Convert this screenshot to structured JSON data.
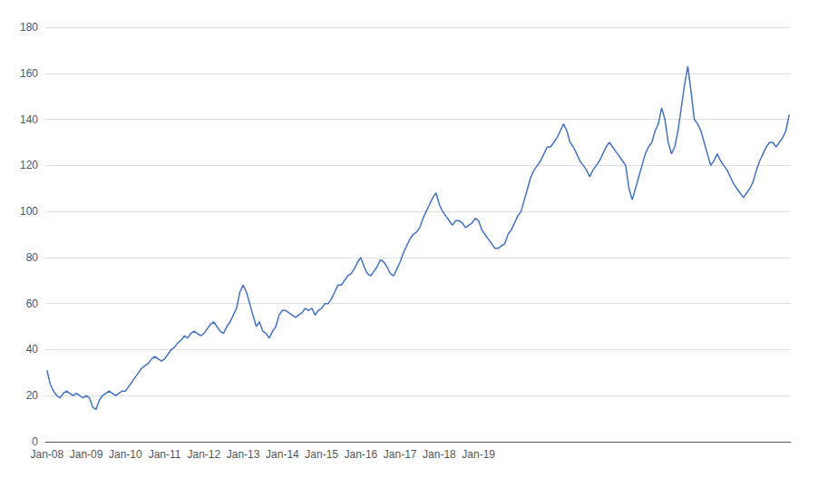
{
  "chart_data": {
    "type": "line",
    "color": "#4472C4",
    "grid": true,
    "ylim": [
      0,
      180
    ],
    "yticks": [
      0,
      20,
      40,
      60,
      80,
      100,
      120,
      140,
      160,
      180
    ],
    "categories": [
      "Jan-08",
      null,
      null,
      null,
      null,
      null,
      null,
      null,
      null,
      null,
      null,
      null,
      "Jan-09",
      null,
      null,
      null,
      null,
      null,
      null,
      null,
      null,
      null,
      null,
      null,
      "Jan-10",
      null,
      null,
      null,
      null,
      null,
      null,
      null,
      null,
      null,
      null,
      null,
      "Jan-11",
      null,
      null,
      null,
      null,
      null,
      null,
      null,
      null,
      null,
      null,
      null,
      "Jan-12",
      null,
      null,
      null,
      null,
      null,
      null,
      null,
      null,
      null,
      null,
      null,
      "Jan-13",
      null,
      null,
      null,
      null,
      null,
      null,
      null,
      null,
      null,
      null,
      null,
      "Jan-14",
      null,
      null,
      null,
      null,
      null,
      null,
      null,
      null,
      null,
      null,
      null,
      "Jan-15",
      null,
      null,
      null,
      null,
      null,
      null,
      null,
      null,
      null,
      null,
      null,
      "Jan-16",
      null,
      null,
      null,
      null,
      null,
      null,
      null,
      null,
      null,
      null,
      null,
      "Jan-17",
      null,
      null,
      null,
      null,
      null,
      null,
      null,
      null,
      null,
      null,
      null,
      "Jan-18",
      null,
      null,
      null,
      null,
      null,
      null,
      null,
      null,
      null,
      null,
      null,
      "Jan-19",
      null,
      null,
      null,
      null,
      null,
      null,
      null,
      null,
      null,
      null,
      null,
      null,
      null,
      null,
      null,
      null,
      null,
      null,
      null,
      null,
      null,
      null,
      null,
      null,
      null,
      null,
      null,
      null,
      null,
      null,
      null,
      null,
      null,
      null,
      null,
      null,
      null,
      null,
      null,
      null,
      null,
      null,
      null,
      null,
      null,
      null,
      null,
      null,
      null,
      null,
      null,
      null,
      null,
      null,
      null,
      null,
      null,
      null,
      null,
      null,
      null,
      null,
      null,
      null,
      null,
      null,
      null,
      null,
      null,
      null,
      null,
      null,
      null,
      null,
      null,
      null,
      null,
      null,
      null,
      null,
      null,
      null,
      null,
      null,
      null,
      null,
      null,
      null,
      null,
      null,
      null,
      null,
      null,
      null,
      null
    ],
    "values": [
      31,
      25,
      22,
      20,
      19,
      21,
      22,
      21,
      20,
      21,
      20,
      19,
      20,
      19,
      15,
      14,
      18,
      20,
      21,
      22,
      21,
      20,
      21,
      22,
      22,
      24,
      26,
      28,
      30,
      32,
      33,
      34,
      36,
      37,
      36,
      35,
      36,
      38,
      40,
      41,
      43,
      44,
      46,
      45,
      47,
      48,
      47,
      46,
      47,
      49,
      51,
      52,
      50,
      48,
      47,
      50,
      52,
      55,
      58,
      65,
      68,
      65,
      60,
      55,
      50,
      52,
      48,
      47,
      45,
      48,
      50,
      55,
      57,
      57,
      56,
      55,
      54,
      55,
      56,
      58,
      57,
      58,
      55,
      57,
      58,
      60,
      60,
      62,
      65,
      68,
      68,
      70,
      72,
      73,
      75,
      78,
      80,
      76,
      73,
      72,
      74,
      76,
      79,
      78,
      76,
      73,
      72,
      75,
      78,
      82,
      85,
      88,
      90,
      91,
      93,
      97,
      100,
      103,
      106,
      108,
      103,
      100,
      98,
      96,
      94,
      96,
      96,
      95,
      93,
      94,
      95,
      97,
      96,
      92,
      90,
      88,
      86,
      84,
      84,
      85,
      86,
      90,
      92,
      95,
      98,
      100,
      105,
      110,
      115,
      118,
      120,
      122,
      125,
      128,
      128,
      130,
      132,
      135,
      138,
      135,
      130,
      128,
      125,
      122,
      120,
      118,
      115,
      118,
      120,
      122,
      125,
      128,
      130,
      128,
      126,
      124,
      122,
      120,
      110,
      105,
      110,
      115,
      120,
      125,
      128,
      130,
      135,
      138,
      145,
      140,
      130,
      125,
      128,
      135,
      145,
      155,
      163,
      152,
      140,
      138,
      135,
      130,
      125,
      120,
      122,
      125,
      122,
      120,
      118,
      115,
      112,
      110,
      108,
      106,
      108,
      110,
      113,
      118,
      122,
      125,
      128,
      130,
      130,
      128,
      130,
      132,
      135,
      142
    ]
  }
}
